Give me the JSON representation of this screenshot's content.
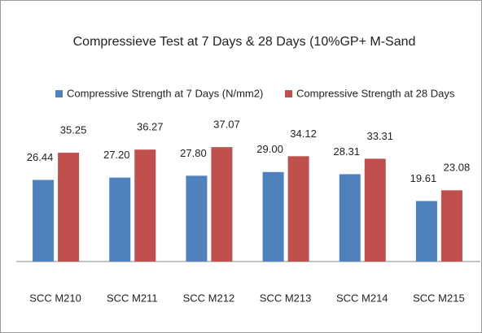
{
  "chart_data": {
    "type": "bar",
    "title": "Compressieve Test at 7 Days & 28 Days (10%GP+ M-Sand",
    "categories": [
      "SCC M210",
      "SCC M211",
      "SCC M212",
      "SCC M213",
      "SCC M214",
      "SCC M215"
    ],
    "series": [
      {
        "name": "Compressive Strength at 7 Days (N/mm2)",
        "color": "#4f81bd",
        "values": [
          26.44,
          27.2,
          27.8,
          29.0,
          28.31,
          19.61
        ],
        "value_labels": [
          "26.44",
          "27.20",
          "27.80",
          "29.00",
          "28.31",
          "19.61"
        ]
      },
      {
        "name": "Compressive Strength at 28 Days",
        "color": "#c0504d",
        "values": [
          35.25,
          36.27,
          37.07,
          34.12,
          33.31,
          23.08
        ],
        "value_labels": [
          "35.25",
          "36.27",
          "37.07",
          "34.12",
          "33.31",
          "23.08"
        ]
      }
    ],
    "ylim": [
      0,
      40
    ]
  }
}
